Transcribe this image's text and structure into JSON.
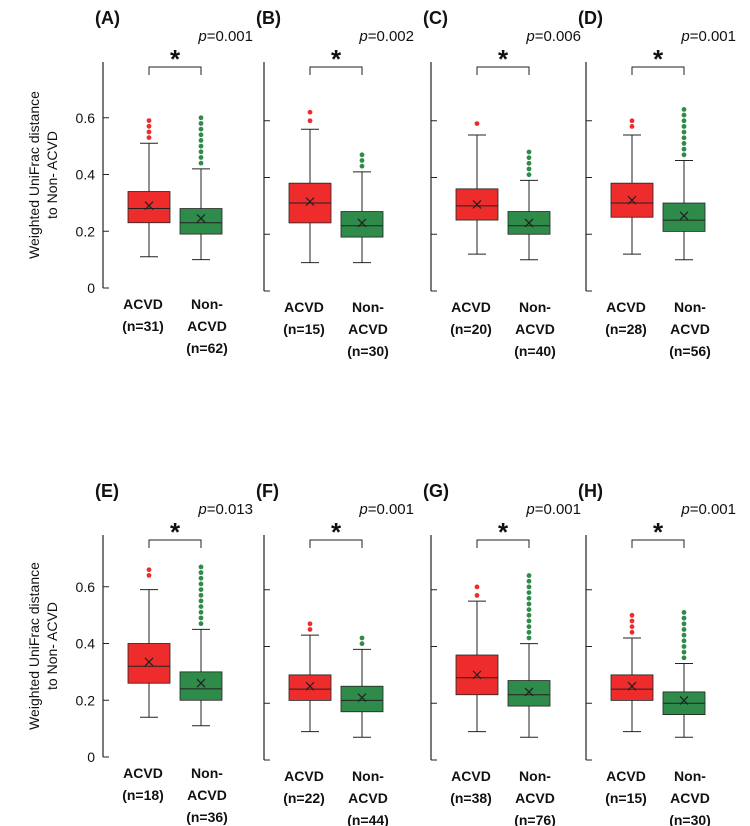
{
  "chart_data": {
    "type": "boxplot",
    "ylabel": "Weighted UniFrac distance\nto Non- ACVD",
    "ylim": [
      0,
      0.8
    ],
    "yticks": [
      "0",
      "0.2",
      "0.4",
      "0.6"
    ],
    "colors": {
      "ACVD": "#ee2c2c",
      "Non-ACVD": "#2e8b4a",
      "axis": "#222222"
    },
    "significance_marker": "*",
    "panels": [
      {
        "label": "(A)",
        "p_value": "0.001",
        "show_y_axis": true,
        "groups": [
          {
            "name": "ACVD",
            "n": "(n=31)",
            "min": 0.11,
            "q1": 0.23,
            "median": 0.28,
            "mean": 0.29,
            "q3": 0.34,
            "max": 0.51,
            "outliers": [
              0.53,
              0.55,
              0.57,
              0.59
            ]
          },
          {
            "name": "Non-ACVD",
            "n": "(n=62)",
            "min": 0.1,
            "q1": 0.19,
            "median": 0.23,
            "mean": 0.245,
            "q3": 0.28,
            "max": 0.42,
            "outliers": [
              0.44,
              0.46,
              0.48,
              0.5,
              0.52,
              0.54,
              0.56,
              0.58,
              0.6
            ]
          }
        ]
      },
      {
        "label": "(B)",
        "p_value": "0.002",
        "show_y_axis": false,
        "groups": [
          {
            "name": "ACVD",
            "n": "(n=15)",
            "min": 0.1,
            "q1": 0.24,
            "median": 0.31,
            "mean": 0.315,
            "q3": 0.38,
            "max": 0.57,
            "outliers": [
              0.6,
              0.63
            ]
          },
          {
            "name": "Non-ACVD",
            "n": "(n=30)",
            "min": 0.1,
            "q1": 0.19,
            "median": 0.23,
            "mean": 0.24,
            "q3": 0.28,
            "max": 0.42,
            "outliers": [
              0.44,
              0.46,
              0.48
            ]
          }
        ]
      },
      {
        "label": "(C)",
        "p_value": "0.006",
        "show_y_axis": false,
        "groups": [
          {
            "name": "ACVD",
            "n": "(n=20)",
            "min": 0.13,
            "q1": 0.25,
            "median": 0.3,
            "mean": 0.305,
            "q3": 0.36,
            "max": 0.55,
            "outliers": [
              0.59
            ]
          },
          {
            "name": "Non-ACVD",
            "n": "(n=40)",
            "min": 0.11,
            "q1": 0.2,
            "median": 0.23,
            "mean": 0.24,
            "q3": 0.28,
            "max": 0.39,
            "outliers": [
              0.41,
              0.43,
              0.45,
              0.47,
              0.49
            ]
          }
        ]
      },
      {
        "label": "(D)",
        "p_value": "0.001",
        "show_y_axis": false,
        "groups": [
          {
            "name": "ACVD",
            "n": "(n=28)",
            "min": 0.13,
            "q1": 0.26,
            "median": 0.31,
            "mean": 0.32,
            "q3": 0.38,
            "max": 0.55,
            "outliers": [
              0.58,
              0.6
            ]
          },
          {
            "name": "Non-ACVD",
            "n": "(n=56)",
            "min": 0.11,
            "q1": 0.21,
            "median": 0.25,
            "mean": 0.265,
            "q3": 0.31,
            "max": 0.46,
            "outliers": [
              0.48,
              0.5,
              0.52,
              0.54,
              0.56,
              0.58,
              0.6,
              0.62,
              0.64
            ]
          }
        ]
      },
      {
        "label": "(E)",
        "p_value": "0.013",
        "show_y_axis": true,
        "groups": [
          {
            "name": "ACVD",
            "n": "(n=18)",
            "min": 0.14,
            "q1": 0.26,
            "median": 0.32,
            "mean": 0.335,
            "q3": 0.4,
            "max": 0.59,
            "outliers": [
              0.64,
              0.66
            ]
          },
          {
            "name": "Non-ACVD",
            "n": "(n=36)",
            "min": 0.11,
            "q1": 0.2,
            "median": 0.24,
            "mean": 0.26,
            "q3": 0.3,
            "max": 0.45,
            "outliers": [
              0.47,
              0.49,
              0.51,
              0.53,
              0.55,
              0.57,
              0.59,
              0.61,
              0.63,
              0.65,
              0.67
            ]
          }
        ]
      },
      {
        "label": "(F)",
        "p_value": "0.001",
        "show_y_axis": false,
        "groups": [
          {
            "name": "ACVD",
            "n": "(n=22)",
            "min": 0.1,
            "q1": 0.21,
            "median": 0.25,
            "mean": 0.26,
            "q3": 0.3,
            "max": 0.44,
            "outliers": [
              0.46,
              0.48
            ]
          },
          {
            "name": "Non-ACVD",
            "n": "(n=44)",
            "min": 0.08,
            "q1": 0.17,
            "median": 0.21,
            "mean": 0.22,
            "q3": 0.26,
            "max": 0.39,
            "outliers": [
              0.41,
              0.43
            ]
          }
        ]
      },
      {
        "label": "(G)",
        "p_value": "0.001",
        "show_y_axis": false,
        "groups": [
          {
            "name": "ACVD",
            "n": "(n=38)",
            "min": 0.1,
            "q1": 0.23,
            "median": 0.29,
            "mean": 0.3,
            "q3": 0.37,
            "max": 0.56,
            "outliers": [
              0.58,
              0.61
            ]
          },
          {
            "name": "Non-ACVD",
            "n": "(n=76)",
            "min": 0.08,
            "q1": 0.19,
            "median": 0.23,
            "mean": 0.24,
            "q3": 0.28,
            "max": 0.41,
            "outliers": [
              0.43,
              0.45,
              0.47,
              0.49,
              0.51,
              0.53,
              0.55,
              0.57,
              0.59,
              0.61,
              0.63,
              0.65
            ]
          }
        ]
      },
      {
        "label": "(H)",
        "p_value": "0.001",
        "show_y_axis": false,
        "groups": [
          {
            "name": "ACVD",
            "n": "(n=15)",
            "min": 0.1,
            "q1": 0.21,
            "median": 0.25,
            "mean": 0.26,
            "q3": 0.3,
            "max": 0.43,
            "outliers": [
              0.45,
              0.47,
              0.49,
              0.51
            ]
          },
          {
            "name": "Non-ACVD",
            "n": "(n=30)",
            "min": 0.08,
            "q1": 0.16,
            "median": 0.2,
            "mean": 0.21,
            "q3": 0.24,
            "max": 0.34,
            "outliers": [
              0.36,
              0.38,
              0.4,
              0.42,
              0.44,
              0.46,
              0.48,
              0.5,
              0.52
            ]
          }
        ]
      }
    ]
  }
}
